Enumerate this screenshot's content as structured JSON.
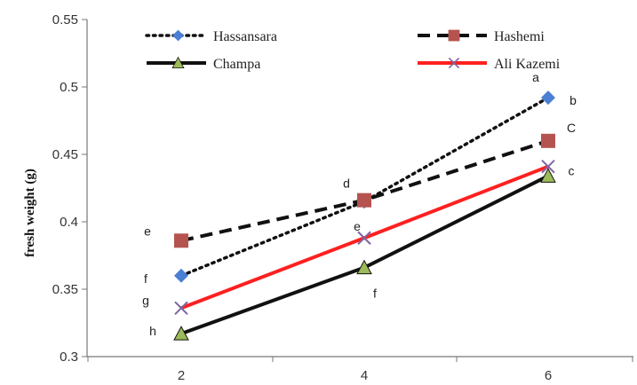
{
  "chart_data": {
    "type": "line",
    "x": [
      2,
      4,
      6
    ],
    "ylabel": "fresh weight (g)",
    "xlabel": "",
    "ylim": [
      0.3,
      0.55
    ],
    "yticks": [
      "0.3",
      "0.35",
      "0.4",
      "0.45",
      "0.5",
      "0.55"
    ],
    "xticks": [
      "2",
      "4",
      "6"
    ],
    "grid": false,
    "legend_position": "top",
    "series": [
      {
        "name": "Hassansara",
        "values": [
          0.36,
          0.415,
          0.492
        ],
        "color": "#111111",
        "line_style": "dotted",
        "marker": "diamond",
        "marker_color": "#4a7fd4",
        "labels": [
          "f",
          "",
          "b"
        ]
      },
      {
        "name": "Hashemi",
        "values": [
          0.386,
          0.416,
          0.46
        ],
        "color": "#111111",
        "line_style": "dashed",
        "marker": "square",
        "marker_color": "#b5534f",
        "labels": [
          "e",
          "d",
          "C"
        ]
      },
      {
        "name": "Champa",
        "values": [
          0.317,
          0.366,
          0.434
        ],
        "color": "#111111",
        "line_style": "solid",
        "marker": "triangle",
        "marker_color": "#9bbb59",
        "labels": [
          "h",
          "f",
          ""
        ]
      },
      {
        "name": "Ali Kazemi",
        "values": [
          0.336,
          0.388,
          0.441
        ],
        "color": "#ff2020",
        "line_style": "solid",
        "marker": "x",
        "marker_color": "#8064a2",
        "labels": [
          "g",
          "e",
          "c"
        ]
      }
    ],
    "annotations": [
      {
        "text": "a",
        "x": 6,
        "y": 0.5,
        "series": "Hassansara"
      }
    ]
  }
}
